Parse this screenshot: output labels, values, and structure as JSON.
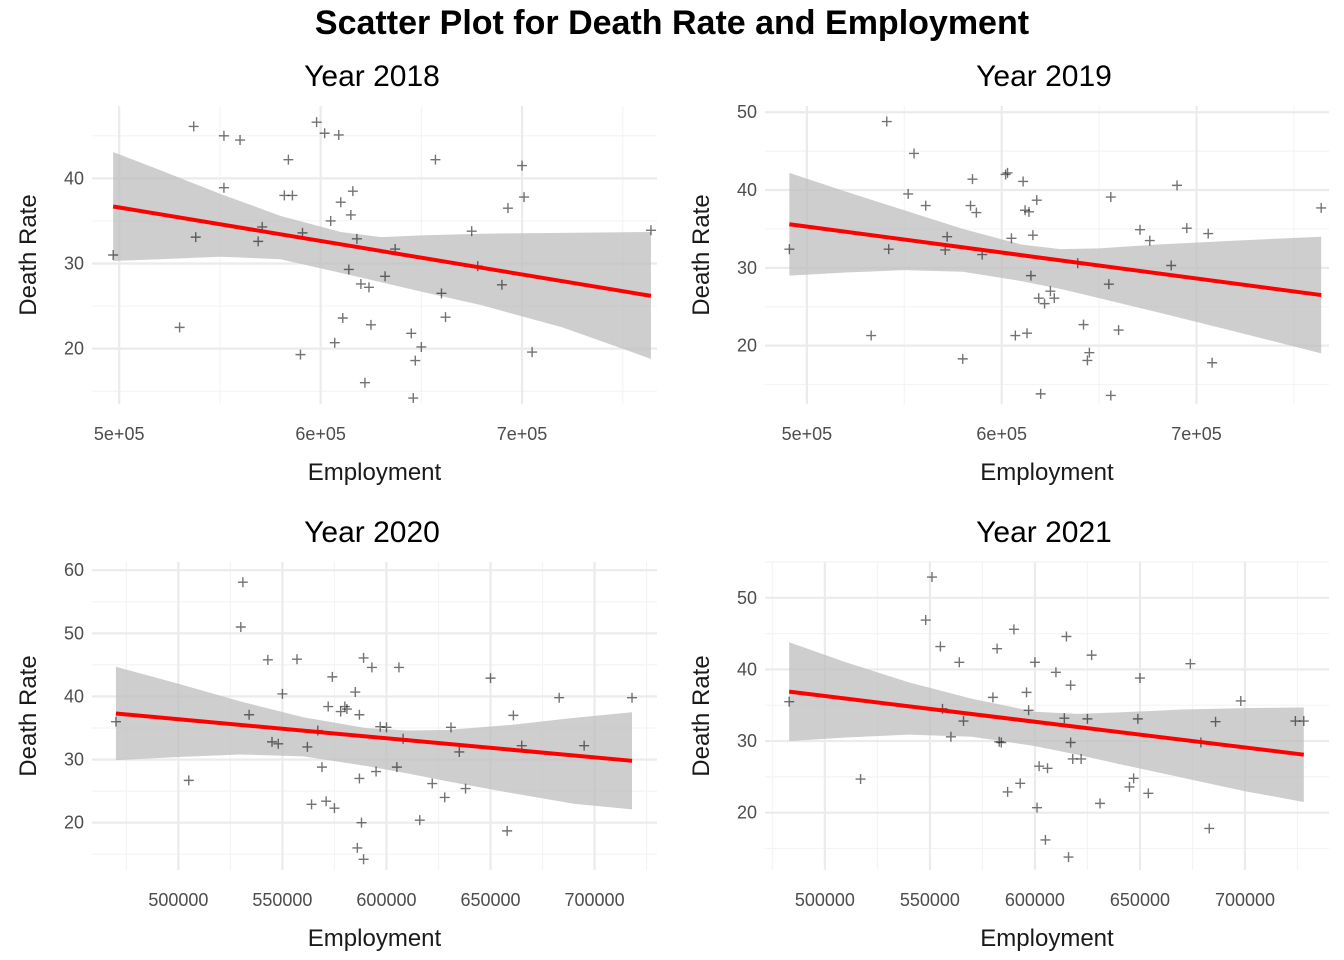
{
  "figure_title": "Scatter Plot for Death Rate and Employment",
  "colors": {
    "fit_line": "#ff0000",
    "band": "#bdbdbd",
    "points": "#000000",
    "grid_major": "#ebebeb",
    "grid_minor": "#f4f4f4"
  },
  "chart_data": [
    {
      "type": "scatter",
      "title": "Year 2018",
      "xlabel": "Employment",
      "ylabel": "Death Rate",
      "xlim": [
        486500,
        767000
      ],
      "ylim": [
        13.5,
        48.5
      ],
      "xticks": [
        500000,
        600000,
        700000
      ],
      "xtick_labels": [
        "5e+05",
        "6e+05",
        "7e+05"
      ],
      "yticks": [
        20,
        30,
        40
      ],
      "ytick_labels": [
        "20",
        "30",
        "40"
      ],
      "fit": {
        "x": [
          497000,
          764000
        ],
        "y": [
          36.7,
          26.2
        ]
      },
      "band": {
        "x": [
          497000,
          520000,
          550000,
          580000,
          610000,
          630000,
          650000,
          680000,
          720000,
          764000
        ],
        "lower": [
          30.3,
          30.5,
          30.8,
          30.5,
          28.9,
          27.8,
          26.7,
          25.1,
          22.5,
          18.8
        ],
        "upper": [
          43.1,
          41.0,
          38.2,
          35.6,
          33.7,
          33.1,
          33.3,
          33.5,
          33.6,
          33.7
        ]
      },
      "points": [
        {
          "x": 497000,
          "y": 31.0
        },
        {
          "x": 530000,
          "y": 22.5
        },
        {
          "x": 537000,
          "y": 46.1
        },
        {
          "x": 538000,
          "y": 33.1
        },
        {
          "x": 552000,
          "y": 45.0
        },
        {
          "x": 552000,
          "y": 38.9
        },
        {
          "x": 560000,
          "y": 44.5
        },
        {
          "x": 569000,
          "y": 32.6
        },
        {
          "x": 571000,
          "y": 34.3
        },
        {
          "x": 582000,
          "y": 38.0
        },
        {
          "x": 584000,
          "y": 42.2
        },
        {
          "x": 586000,
          "y": 38.0
        },
        {
          "x": 590000,
          "y": 19.3
        },
        {
          "x": 591000,
          "y": 33.6
        },
        {
          "x": 598000,
          "y": 46.6
        },
        {
          "x": 602000,
          "y": 45.3
        },
        {
          "x": 605000,
          "y": 35.0
        },
        {
          "x": 607000,
          "y": 20.7
        },
        {
          "x": 609000,
          "y": 45.1
        },
        {
          "x": 610000,
          "y": 37.2
        },
        {
          "x": 611000,
          "y": 23.6
        },
        {
          "x": 614000,
          "y": 29.3
        },
        {
          "x": 615000,
          "y": 35.7
        },
        {
          "x": 616000,
          "y": 38.5
        },
        {
          "x": 618000,
          "y": 32.9
        },
        {
          "x": 620000,
          "y": 27.6
        },
        {
          "x": 622000,
          "y": 16.0
        },
        {
          "x": 624000,
          "y": 27.2
        },
        {
          "x": 625000,
          "y": 22.8
        },
        {
          "x": 632000,
          "y": 28.5
        },
        {
          "x": 637000,
          "y": 31.7
        },
        {
          "x": 645000,
          "y": 21.8
        },
        {
          "x": 646000,
          "y": 14.2
        },
        {
          "x": 647000,
          "y": 18.6
        },
        {
          "x": 650000,
          "y": 20.2
        },
        {
          "x": 657000,
          "y": 42.2
        },
        {
          "x": 660000,
          "y": 26.5
        },
        {
          "x": 662000,
          "y": 23.7
        },
        {
          "x": 675000,
          "y": 33.8
        },
        {
          "x": 678000,
          "y": 29.7
        },
        {
          "x": 690000,
          "y": 27.5
        },
        {
          "x": 693000,
          "y": 36.5
        },
        {
          "x": 700000,
          "y": 41.5
        },
        {
          "x": 701000,
          "y": 37.8
        },
        {
          "x": 705000,
          "y": 19.6
        },
        {
          "x": 764000,
          "y": 33.9
        }
      ]
    },
    {
      "type": "scatter",
      "title": "Year 2019",
      "xlabel": "Employment",
      "ylabel": "Death Rate",
      "xlim": [
        478500,
        768000
      ],
      "ylim": [
        12.5,
        50.8
      ],
      "xticks": [
        500000,
        600000,
        700000
      ],
      "xtick_labels": [
        "5e+05",
        "6e+05",
        "7e+05"
      ],
      "yticks": [
        20,
        30,
        40,
        50
      ],
      "ytick_labels": [
        "20",
        "30",
        "40",
        "50"
      ],
      "fit": {
        "x": [
          491000,
          764000
        ],
        "y": [
          35.6,
          26.5
        ]
      },
      "band": {
        "x": [
          491000,
          520000,
          550000,
          580000,
          610000,
          630000,
          650000,
          680000,
          720000,
          764000
        ],
        "lower": [
          29.0,
          29.4,
          29.7,
          29.5,
          28.3,
          27.3,
          26.1,
          24.3,
          21.8,
          19.0
        ],
        "upper": [
          42.2,
          39.8,
          37.4,
          35.0,
          33.0,
          32.4,
          32.5,
          33.0,
          33.5,
          34.0
        ]
      },
      "points": [
        {
          "x": 491000,
          "y": 32.4
        },
        {
          "x": 533000,
          "y": 21.3
        },
        {
          "x": 541000,
          "y": 48.8
        },
        {
          "x": 542000,
          "y": 32.4
        },
        {
          "x": 552000,
          "y": 39.5
        },
        {
          "x": 555000,
          "y": 44.7
        },
        {
          "x": 561000,
          "y": 38.0
        },
        {
          "x": 571000,
          "y": 32.3
        },
        {
          "x": 572000,
          "y": 34.0
        },
        {
          "x": 580000,
          "y": 18.3
        },
        {
          "x": 584000,
          "y": 38.0
        },
        {
          "x": 585000,
          "y": 41.4
        },
        {
          "x": 587000,
          "y": 37.1
        },
        {
          "x": 590000,
          "y": 31.7
        },
        {
          "x": 602000,
          "y": 42.0
        },
        {
          "x": 603000,
          "y": 42.2
        },
        {
          "x": 605000,
          "y": 33.8
        },
        {
          "x": 607000,
          "y": 21.3
        },
        {
          "x": 611000,
          "y": 41.1
        },
        {
          "x": 612000,
          "y": 37.4
        },
        {
          "x": 613000,
          "y": 21.6
        },
        {
          "x": 614000,
          "y": 37.2
        },
        {
          "x": 615000,
          "y": 29.0
        },
        {
          "x": 616000,
          "y": 34.2
        },
        {
          "x": 618000,
          "y": 38.7
        },
        {
          "x": 619000,
          "y": 26.1
        },
        {
          "x": 620000,
          "y": 13.8
        },
        {
          "x": 622000,
          "y": 25.4
        },
        {
          "x": 625000,
          "y": 27.0
        },
        {
          "x": 627000,
          "y": 26.1
        },
        {
          "x": 639000,
          "y": 30.6
        },
        {
          "x": 642000,
          "y": 22.7
        },
        {
          "x": 644000,
          "y": 18.1
        },
        {
          "x": 645000,
          "y": 19.1
        },
        {
          "x": 655000,
          "y": 27.9
        },
        {
          "x": 656000,
          "y": 39.1
        },
        {
          "x": 656000,
          "y": 13.6
        },
        {
          "x": 660000,
          "y": 22.0
        },
        {
          "x": 671000,
          "y": 34.9
        },
        {
          "x": 676000,
          "y": 33.5
        },
        {
          "x": 687000,
          "y": 30.3
        },
        {
          "x": 690000,
          "y": 40.6
        },
        {
          "x": 695000,
          "y": 35.1
        },
        {
          "x": 706000,
          "y": 34.4
        },
        {
          "x": 708000,
          "y": 17.8
        },
        {
          "x": 764000,
          "y": 37.7
        }
      ]
    },
    {
      "type": "scatter",
      "title": "Year 2020",
      "xlabel": "Employment",
      "ylabel": "Death Rate",
      "xlim": [
        458500,
        730000
      ],
      "ylim": [
        12.5,
        61.3
      ],
      "xticks": [
        500000,
        550000,
        600000,
        650000,
        700000
      ],
      "xtick_labels": [
        "500000",
        "550000",
        "600000",
        "650000",
        "700000"
      ],
      "yticks": [
        20,
        30,
        40,
        50,
        60
      ],
      "ytick_labels": [
        "20",
        "30",
        "40",
        "50",
        "60"
      ],
      "fit": {
        "x": [
          470000,
          718000
        ],
        "y": [
          37.3,
          29.8
        ]
      },
      "band": {
        "x": [
          470000,
          500000,
          530000,
          560000,
          590000,
          610000,
          630000,
          660000,
          690000,
          718000
        ],
        "lower": [
          29.9,
          30.4,
          30.8,
          30.5,
          29.0,
          27.8,
          26.5,
          24.7,
          23.0,
          22.1
        ],
        "upper": [
          44.7,
          42.0,
          39.2,
          36.7,
          35.0,
          34.6,
          34.7,
          35.5,
          36.6,
          37.5
        ]
      },
      "points": [
        {
          "x": 470000,
          "y": 36.0
        },
        {
          "x": 505000,
          "y": 26.7
        },
        {
          "x": 530000,
          "y": 51.0
        },
        {
          "x": 531000,
          "y": 58.1
        },
        {
          "x": 534000,
          "y": 37.1
        },
        {
          "x": 543000,
          "y": 45.8
        },
        {
          "x": 545000,
          "y": 32.8
        },
        {
          "x": 548000,
          "y": 32.5
        },
        {
          "x": 550000,
          "y": 40.4
        },
        {
          "x": 557000,
          "y": 45.9
        },
        {
          "x": 562000,
          "y": 32.0
        },
        {
          "x": 564000,
          "y": 22.9
        },
        {
          "x": 567000,
          "y": 34.6
        },
        {
          "x": 569000,
          "y": 28.8
        },
        {
          "x": 571000,
          "y": 23.4
        },
        {
          "x": 572000,
          "y": 38.4
        },
        {
          "x": 574000,
          "y": 43.1
        },
        {
          "x": 575000,
          "y": 22.3
        },
        {
          "x": 578000,
          "y": 37.6
        },
        {
          "x": 580000,
          "y": 38.4
        },
        {
          "x": 581000,
          "y": 38.0
        },
        {
          "x": 585000,
          "y": 40.7
        },
        {
          "x": 586000,
          "y": 16.0
        },
        {
          "x": 587000,
          "y": 37.1
        },
        {
          "x": 587000,
          "y": 27.0
        },
        {
          "x": 588000,
          "y": 20.0
        },
        {
          "x": 589000,
          "y": 46.1
        },
        {
          "x": 589000,
          "y": 14.2
        },
        {
          "x": 593000,
          "y": 44.6
        },
        {
          "x": 595000,
          "y": 28.1
        },
        {
          "x": 597000,
          "y": 35.2
        },
        {
          "x": 600000,
          "y": 35.1
        },
        {
          "x": 605000,
          "y": 28.8
        },
        {
          "x": 606000,
          "y": 44.6
        },
        {
          "x": 608000,
          "y": 33.3
        },
        {
          "x": 616000,
          "y": 20.4
        },
        {
          "x": 622000,
          "y": 26.2
        },
        {
          "x": 628000,
          "y": 24.0
        },
        {
          "x": 631000,
          "y": 35.1
        },
        {
          "x": 635000,
          "y": 31.2
        },
        {
          "x": 638000,
          "y": 25.4
        },
        {
          "x": 650000,
          "y": 42.9
        },
        {
          "x": 658000,
          "y": 18.7
        },
        {
          "x": 661000,
          "y": 37.0
        },
        {
          "x": 665000,
          "y": 32.2
        },
        {
          "x": 683000,
          "y": 39.8
        },
        {
          "x": 695000,
          "y": 32.2
        },
        {
          "x": 718000,
          "y": 39.8
        }
      ]
    },
    {
      "type": "scatter",
      "title": "Year 2021",
      "xlabel": "Employment",
      "ylabel": "Death Rate",
      "xlim": [
        471500,
        740000
      ],
      "ylim": [
        12.0,
        55.0
      ],
      "xticks": [
        500000,
        550000,
        600000,
        650000,
        700000
      ],
      "xtick_labels": [
        "500000",
        "550000",
        "600000",
        "650000",
        "700000"
      ],
      "yticks": [
        20,
        30,
        40,
        50
      ],
      "ytick_labels": [
        "20",
        "30",
        "40",
        "50"
      ],
      "fit": {
        "x": [
          483000,
          728000
        ],
        "y": [
          36.9,
          28.1
        ]
      },
      "band": {
        "x": [
          483000,
          510000,
          540000,
          570000,
          600000,
          620000,
          640000,
          670000,
          700000,
          728000
        ],
        "lower": [
          30.0,
          30.5,
          30.9,
          30.6,
          29.3,
          28.1,
          26.8,
          24.9,
          23.0,
          21.5
        ],
        "upper": [
          43.8,
          41.0,
          38.2,
          35.9,
          34.1,
          33.8,
          34.0,
          34.4,
          34.6,
          34.7
        ]
      },
      "points": [
        {
          "x": 483000,
          "y": 35.5
        },
        {
          "x": 517000,
          "y": 24.7
        },
        {
          "x": 548000,
          "y": 46.9
        },
        {
          "x": 551000,
          "y": 52.9
        },
        {
          "x": 555000,
          "y": 43.2
        },
        {
          "x": 556000,
          "y": 34.5
        },
        {
          "x": 560000,
          "y": 30.6
        },
        {
          "x": 564000,
          "y": 41.0
        },
        {
          "x": 566000,
          "y": 32.8
        },
        {
          "x": 580000,
          "y": 36.1
        },
        {
          "x": 582000,
          "y": 42.9
        },
        {
          "x": 583000,
          "y": 29.9
        },
        {
          "x": 584000,
          "y": 29.8
        },
        {
          "x": 587000,
          "y": 22.9
        },
        {
          "x": 590000,
          "y": 45.6
        },
        {
          "x": 593000,
          "y": 24.1
        },
        {
          "x": 596000,
          "y": 36.8
        },
        {
          "x": 597000,
          "y": 34.3
        },
        {
          "x": 600000,
          "y": 41.0
        },
        {
          "x": 601000,
          "y": 20.7
        },
        {
          "x": 602000,
          "y": 26.5
        },
        {
          "x": 605000,
          "y": 16.2
        },
        {
          "x": 606000,
          "y": 26.2
        },
        {
          "x": 610000,
          "y": 39.6
        },
        {
          "x": 614000,
          "y": 33.2
        },
        {
          "x": 615000,
          "y": 44.6
        },
        {
          "x": 616000,
          "y": 13.8
        },
        {
          "x": 617000,
          "y": 37.8
        },
        {
          "x": 617000,
          "y": 29.8
        },
        {
          "x": 618000,
          "y": 27.5
        },
        {
          "x": 622000,
          "y": 27.5
        },
        {
          "x": 625000,
          "y": 33.1
        },
        {
          "x": 627000,
          "y": 42.0
        },
        {
          "x": 631000,
          "y": 21.3
        },
        {
          "x": 645000,
          "y": 23.6
        },
        {
          "x": 647000,
          "y": 24.8
        },
        {
          "x": 649000,
          "y": 33.1
        },
        {
          "x": 650000,
          "y": 38.8
        },
        {
          "x": 654000,
          "y": 22.7
        },
        {
          "x": 674000,
          "y": 40.8
        },
        {
          "x": 679000,
          "y": 29.8
        },
        {
          "x": 683000,
          "y": 17.8
        },
        {
          "x": 686000,
          "y": 32.7
        },
        {
          "x": 698000,
          "y": 35.6
        },
        {
          "x": 724000,
          "y": 32.8
        },
        {
          "x": 728000,
          "y": 32.8
        }
      ]
    }
  ]
}
